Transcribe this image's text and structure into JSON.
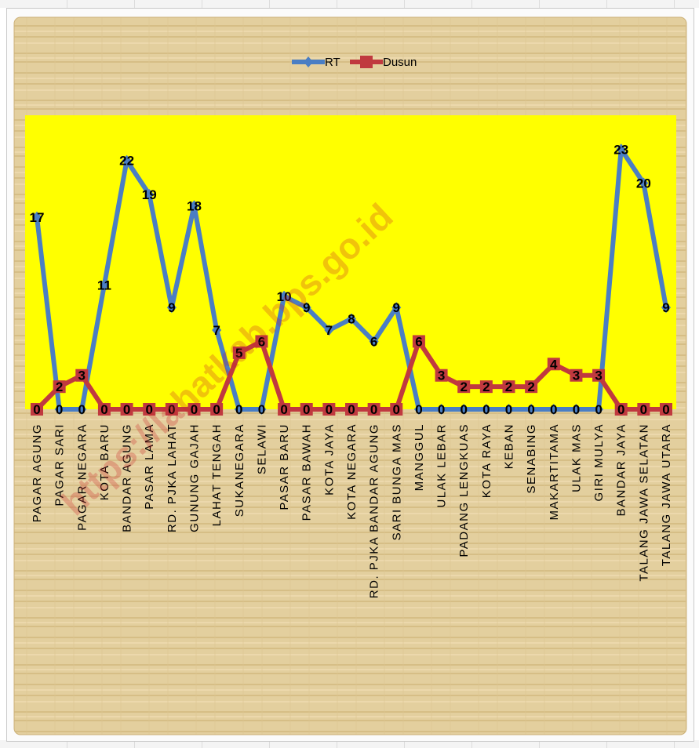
{
  "chart_data": {
    "type": "line",
    "title": "",
    "xlabel": "",
    "ylabel": "",
    "ylim": [
      0,
      26
    ],
    "legend_position": "top-center",
    "grid": false,
    "plot_background": "#ffff00",
    "categories": [
      "PAGAR AGUNG",
      "PAGAR SARI",
      "PAGAR NEGARA",
      "KOTA BARU",
      "BANDAR AGUNG",
      "PASAR LAMA",
      "RD. PJKA LAHAT",
      "GUNUNG GAJAH",
      "LAHAT TENGAH",
      "SUKANEGARA",
      "SELAWI",
      "PASAR BARU",
      "PASAR BAWAH",
      "KOTA JAYA",
      "KOTA NEGARA",
      "RD. PJKA BANDAR AGUNG",
      "SARI BUNGA MAS",
      "MANGGUL",
      "ULAK LEBAR",
      "PADANG LENGKUAS",
      "KOTA RAYA",
      "KEBAN",
      "SENABING",
      "MAKARTITAMA",
      "ULAK MAS",
      "GIRI MULYA",
      "BANDAR JAYA",
      "TALANG JAWA SELATAN",
      "TALANG JAWA UTARA"
    ],
    "series": [
      {
        "name": "RT",
        "color": "#4a7ec4",
        "values": [
          17,
          0,
          0,
          11,
          22,
          19,
          9,
          18,
          7,
          0,
          0,
          10,
          9,
          7,
          8,
          6,
          9,
          0,
          0,
          0,
          0,
          0,
          0,
          0,
          0,
          0,
          23,
          20,
          9
        ]
      },
      {
        "name": "Dusun",
        "color": "#c0393f",
        "values": [
          0,
          2,
          3,
          0,
          0,
          0,
          0,
          0,
          0,
          5,
          6,
          0,
          0,
          0,
          0,
          0,
          0,
          6,
          3,
          2,
          2,
          2,
          2,
          4,
          3,
          3,
          0,
          0,
          0
        ]
      }
    ]
  },
  "watermark": "https://lahatkab.bps.go.id"
}
